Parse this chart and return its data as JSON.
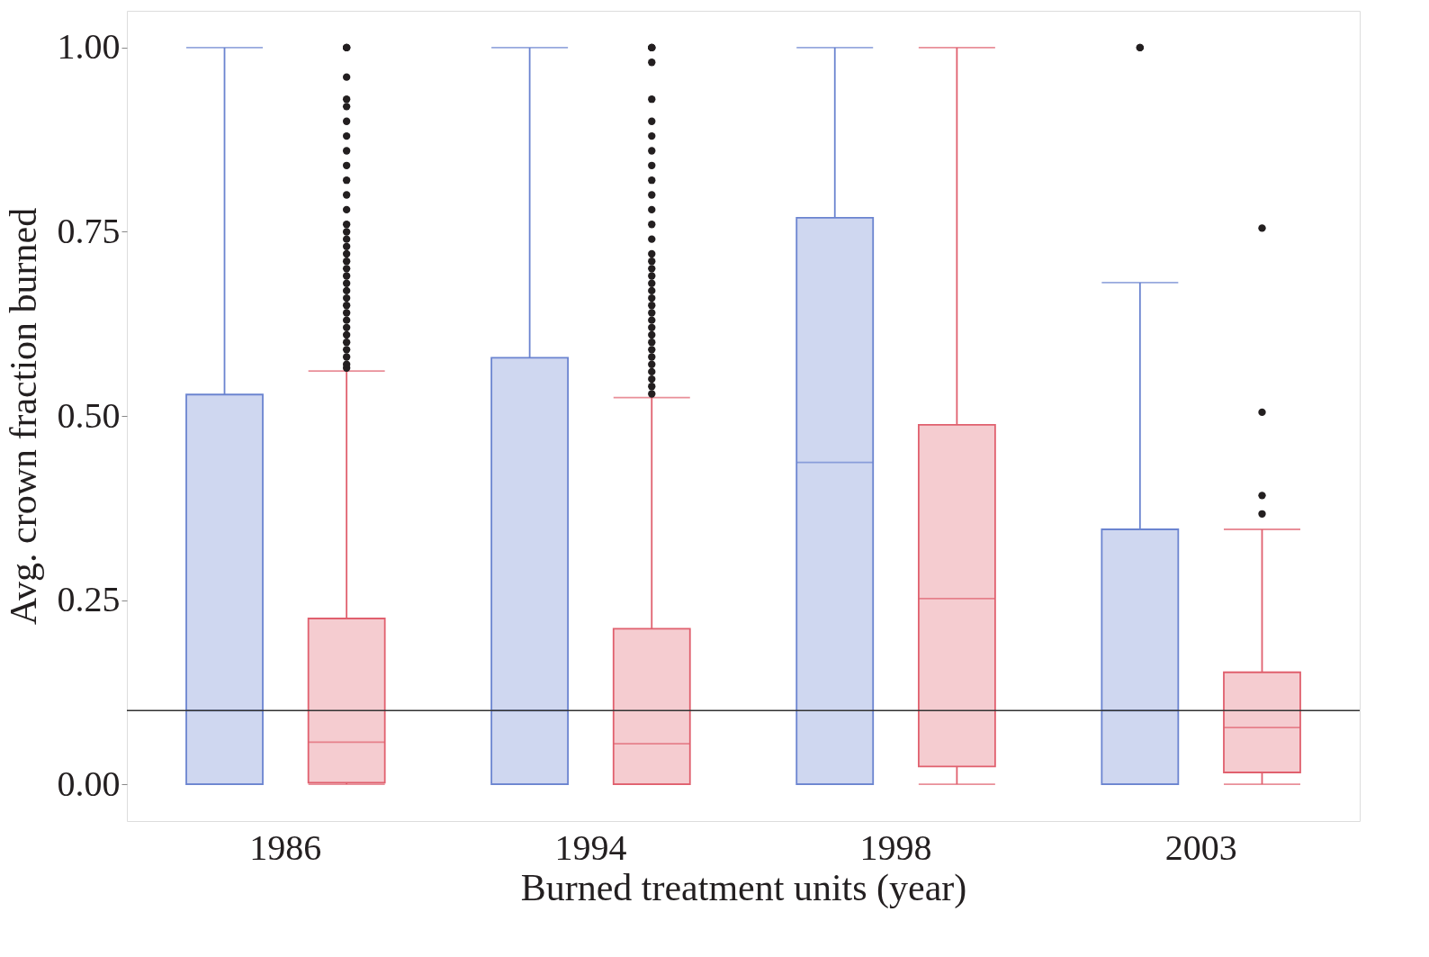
{
  "chart_data": {
    "type": "box",
    "xlabel": "Burned treatment units (year)",
    "ylabel": "Avg. crown fraction burned",
    "categories": [
      "1986",
      "1994",
      "1998",
      "2003"
    ],
    "ylim": [
      -0.05,
      1.05
    ],
    "yticks": [
      {
        "value": 0,
        "label": "0.00"
      },
      {
        "value": 0.25,
        "label": "0.25"
      },
      {
        "value": 0.5,
        "label": "0.50"
      },
      {
        "value": 0.75,
        "label": "0.75"
      },
      {
        "value": 1,
        "label": "1.00"
      }
    ],
    "grid": false,
    "legend": false,
    "ref_lines": [
      {
        "axis": "y",
        "value": 0.1,
        "color": "#333333"
      }
    ],
    "series": [
      {
        "color": "#6b84d0",
        "boxes": [
          {
            "low": 0,
            "q1": 0,
            "median": 0.1,
            "q3": 0.529,
            "high": 1
          },
          {
            "low": 0,
            "q1": 0,
            "median": 0.1,
            "q3": 0.579,
            "high": 1
          },
          {
            "low": 0,
            "q1": 0,
            "median": 0.437,
            "q3": 0.769,
            "high": 1
          },
          {
            "low": 0,
            "q1": 0,
            "median": 0.1,
            "q3": 0.346,
            "high": 0.681,
            "outliers": [
              1.0,
              1.0
            ]
          }
        ]
      },
      {
        "color": "#e0606e",
        "boxes": [
          {
            "low": 0,
            "q1": 0.002,
            "median": 0.057,
            "q3": 0.225,
            "high": 0.561,
            "outliers": [
              0.565,
              0.57,
              0.58,
              0.59,
              0.6,
              0.61,
              0.62,
              0.63,
              0.64,
              0.65,
              0.66,
              0.67,
              0.68,
              0.69,
              0.7,
              0.71,
              0.72,
              0.73,
              0.74,
              0.75,
              0.76,
              0.78,
              0.8,
              0.82,
              0.84,
              0.86,
              0.88,
              0.9,
              0.92,
              0.93,
              0.96,
              1.0,
              1.0,
              1.0
            ]
          },
          {
            "low": 0,
            "q1": 0,
            "median": 0.055,
            "q3": 0.211,
            "high": 0.525,
            "outliers": [
              0.53,
              0.54,
              0.55,
              0.56,
              0.57,
              0.58,
              0.59,
              0.6,
              0.61,
              0.62,
              0.63,
              0.64,
              0.65,
              0.66,
              0.67,
              0.68,
              0.69,
              0.7,
              0.71,
              0.72,
              0.74,
              0.76,
              0.78,
              0.8,
              0.82,
              0.84,
              0.86,
              0.88,
              0.9,
              0.93,
              0.98,
              1.0,
              1.0,
              1.0
            ]
          },
          {
            "low": 0,
            "q1": 0.024,
            "median": 0.252,
            "q3": 0.488,
            "high": 1
          },
          {
            "low": 0,
            "q1": 0.016,
            "median": 0.077,
            "q3": 0.152,
            "high": 0.346,
            "outliers": [
              0.367,
              0.392,
              0.505,
              0.755
            ]
          }
        ]
      }
    ]
  }
}
